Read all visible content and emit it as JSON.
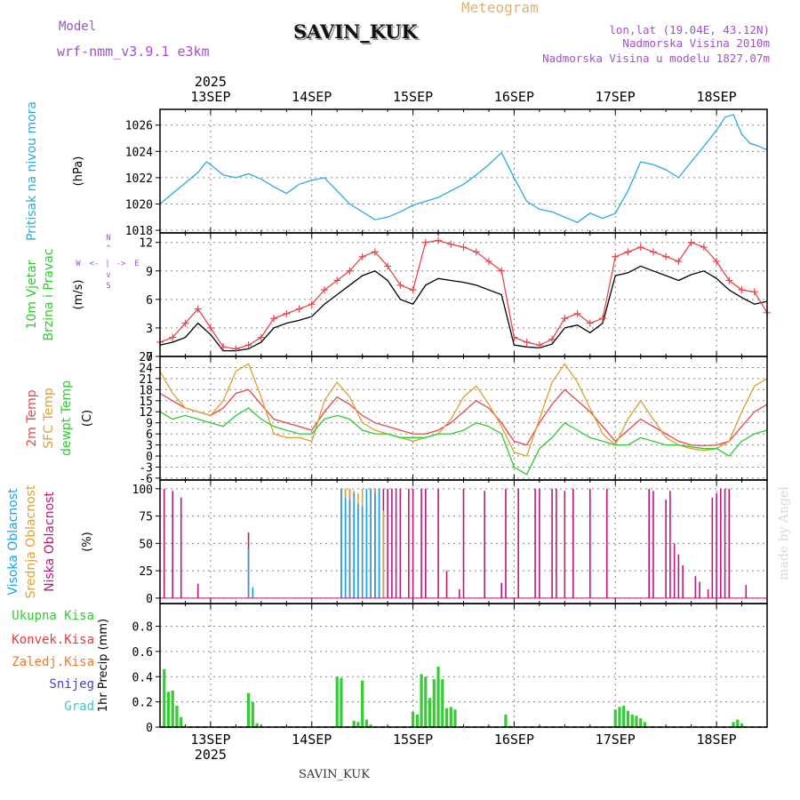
{
  "header": {
    "model_label": "Model",
    "model_value": "wrf-nmm_v3.9.1 e3km",
    "title": "Meteogram",
    "station": "SAVIN_KUK",
    "lonlat": "lon,lat (19.04E, 43.12N)",
    "elevation": "Nadmorska Visina 2010m",
    "model_elevation": "Nadmorska Visina u modelu 1827.07m",
    "footer_station": "SAVIN_KUK",
    "watermark": "made by Angel"
  },
  "colors": {
    "pressure": "#29abe2",
    "wind_speed": "#000000",
    "gust": "#e8474c",
    "temp2m": "#e8474c",
    "sfc_temp": "#e0a030",
    "dewpt": "#2ecc2e",
    "high_cloud": "#1aa3e8",
    "mid_cloud": "#e0a030",
    "low_cloud": "#c0167a",
    "precip_total": "#33cc33",
    "precip_conv": "#e83a3a",
    "precip_frz": "#f07a2a",
    "snow": "#4040e0",
    "graupel": "#33cccc",
    "model_color": "#a24fd0",
    "grid": "#888888"
  },
  "chart_data": {
    "type": "line",
    "year": "2025",
    "x_unit": "hours from 13SEP 00UTC",
    "xlim": [
      -12,
      132
    ],
    "day_ticks": [
      {
        "label": "13SEP",
        "hour": 0
      },
      {
        "label": "14SEP",
        "hour": 24
      },
      {
        "label": "15SEP",
        "hour": 48
      },
      {
        "label": "16SEP",
        "hour": 72
      },
      {
        "label": "17SEP",
        "hour": 96
      },
      {
        "label": "18SEP",
        "hour": 120
      }
    ],
    "panels": [
      {
        "id": "pressure",
        "ylabels": [
          "Pritisak na nivou mora",
          "(hPa)"
        ],
        "ylim": [
          1017.8,
          1027.2
        ],
        "yticks": [
          1018,
          1020,
          1022,
          1024,
          1026
        ],
        "series": [
          {
            "name": "Pritisak na nivou mora",
            "x": [
              -12,
              -9,
              -6,
              -3,
              -1,
              0,
              3,
              6,
              9,
              12,
              15,
              18,
              21,
              24,
              27,
              30,
              33,
              36,
              39,
              42,
              45,
              48,
              51,
              54,
              57,
              60,
              63,
              66,
              69,
              72,
              75,
              78,
              81,
              84,
              87,
              90,
              93,
              96,
              99,
              102,
              105,
              108,
              111,
              114,
              117,
              120,
              122,
              124,
              126,
              128,
              130,
              132
            ],
            "y": [
              1020.0,
              1020.8,
              1021.6,
              1022.4,
              1023.2,
              1023.0,
              1022.2,
              1022.0,
              1022.3,
              1021.9,
              1021.3,
              1020.8,
              1021.5,
              1021.8,
              1022.0,
              1021.0,
              1020.0,
              1019.4,
              1018.8,
              1019.0,
              1019.4,
              1019.9,
              1020.2,
              1020.5,
              1021.0,
              1021.5,
              1022.2,
              1023.0,
              1023.9,
              1022.0,
              1020.2,
              1019.6,
              1019.4,
              1019.0,
              1018.6,
              1019.3,
              1018.9,
              1019.3,
              1021.0,
              1023.2,
              1023.0,
              1022.6,
              1022.0,
              1023.2,
              1024.4,
              1025.6,
              1026.6,
              1026.8,
              1025.3,
              1024.6,
              1024.4,
              1024.1
            ]
          }
        ]
      },
      {
        "id": "wind",
        "ylabels": [
          "10m Vjetar",
          "Brzina i Pravac",
          "(m/s)"
        ],
        "ylim": [
          0,
          13
        ],
        "yticks": [
          0,
          3,
          6,
          9,
          12
        ],
        "compass": [
          "W",
          "<-",
          "|",
          "->",
          "E",
          "N",
          "^",
          "v",
          "S"
        ],
        "series": [
          {
            "name": "Brzina vjetra",
            "x": [
              -12,
              -9,
              -6,
              -3,
              0,
              3,
              6,
              9,
              12,
              15,
              18,
              21,
              24,
              27,
              30,
              33,
              36,
              39,
              42,
              45,
              48,
              51,
              54,
              57,
              60,
              63,
              66,
              69,
              72,
              75,
              78,
              81,
              84,
              87,
              90,
              93,
              96,
              99,
              102,
              105,
              108,
              111,
              114,
              117,
              120,
              123,
              126,
              129,
              132
            ],
            "y": [
              1.2,
              1.5,
              2.0,
              3.5,
              2.3,
              0.6,
              0.6,
              0.8,
              1.5,
              3.0,
              3.5,
              3.8,
              4.2,
              5.5,
              6.5,
              7.5,
              8.5,
              9.0,
              8.0,
              6.0,
              5.5,
              7.5,
              8.2,
              8.0,
              7.8,
              7.5,
              7.0,
              6.5,
              1.2,
              1.0,
              0.9,
              1.3,
              3.0,
              3.3,
              2.5,
              3.5,
              8.5,
              8.8,
              9.5,
              9.0,
              8.5,
              8.0,
              8.6,
              9.0,
              8.2,
              7.0,
              6.2,
              5.5,
              5.8
            ]
          },
          {
            "name": "Udar vjetra",
            "x": [
              -12,
              -9,
              -6,
              -3,
              0,
              3,
              6,
              9,
              12,
              15,
              18,
              21,
              24,
              27,
              30,
              33,
              36,
              39,
              42,
              45,
              48,
              51,
              54,
              57,
              60,
              63,
              66,
              69,
              72,
              75,
              78,
              81,
              84,
              87,
              90,
              93,
              96,
              99,
              102,
              105,
              108,
              111,
              114,
              117,
              120,
              123,
              126,
              129,
              132
            ],
            "y": [
              1.5,
              2.0,
              3.5,
              5.0,
              3.0,
              1.0,
              0.8,
              1.2,
              2.0,
              4.0,
              4.5,
              5.0,
              5.5,
              7.0,
              8.0,
              9.0,
              10.5,
              11.0,
              9.5,
              7.5,
              7.0,
              12.0,
              12.2,
              11.8,
              11.5,
              11.0,
              10.0,
              9.0,
              2.0,
              1.5,
              1.2,
              1.8,
              4.0,
              4.5,
              3.5,
              4.0,
              10.5,
              11.0,
              11.5,
              11.0,
              10.5,
              10.0,
              12.0,
              11.5,
              10.0,
              8.0,
              7.0,
              6.8,
              4.6
            ]
          }
        ]
      },
      {
        "id": "temperature",
        "ylabels": [
          "2m Temp",
          "SFC Temp",
          "dewpt Temp",
          "(C)"
        ],
        "ylim": [
          -6.5,
          27
        ],
        "yticks": [
          -6,
          -3,
          0,
          3,
          6,
          9,
          12,
          15,
          18,
          21,
          24,
          27
        ],
        "series": [
          {
            "name": "2m Temp",
            "x": [
              -12,
              -9,
              -6,
              -3,
              0,
              3,
              6,
              9,
              12,
              15,
              18,
              21,
              24,
              27,
              30,
              33,
              36,
              39,
              42,
              45,
              48,
              51,
              54,
              57,
              60,
              63,
              66,
              69,
              72,
              75,
              78,
              81,
              84,
              87,
              90,
              93,
              96,
              99,
              102,
              105,
              108,
              111,
              114,
              117,
              120,
              123,
              126,
              129,
              132
            ],
            "y": [
              17,
              15,
              13,
              12,
              11,
              13,
              17,
              18,
              14,
              10,
              9,
              8,
              7,
              12,
              16,
              14,
              11,
              9,
              8,
              7,
              6,
              6,
              7,
              9,
              12,
              15,
              13,
              9,
              4,
              3,
              9,
              14,
              18,
              15,
              12,
              8,
              4,
              7,
              10,
              8,
              6,
              4,
              3,
              2.8,
              3,
              4,
              8,
              12,
              14
            ]
          },
          {
            "name": "SFC Temp",
            "x": [
              -12,
              -9,
              -6,
              -3,
              0,
              3,
              6,
              9,
              12,
              15,
              18,
              21,
              24,
              27,
              30,
              33,
              36,
              39,
              42,
              45,
              48,
              51,
              54,
              57,
              60,
              63,
              66,
              69,
              72,
              75,
              78,
              81,
              84,
              87,
              90,
              93,
              96,
              99,
              102,
              105,
              108,
              111,
              114,
              117,
              120,
              123,
              126,
              129,
              132
            ],
            "y": [
              23,
              17,
              13,
              12,
              11,
              15,
              23,
              25,
              16,
              6,
              5,
              5,
              4,
              15,
              20,
              16,
              9,
              7,
              6,
              5,
              4,
              5,
              6,
              10,
              16,
              19,
              14,
              8,
              1,
              0,
              10,
              20,
              25,
              20,
              13,
              6,
              3,
              10,
              15,
              10,
              5,
              3,
              2,
              1.5,
              2,
              4,
              12,
              19,
              21
            ]
          },
          {
            "name": "dewpt Temp",
            "x": [
              -12,
              -9,
              -6,
              -3,
              0,
              3,
              6,
              9,
              12,
              15,
              18,
              21,
              24,
              27,
              30,
              33,
              36,
              39,
              42,
              45,
              48,
              51,
              54,
              57,
              60,
              63,
              66,
              69,
              72,
              75,
              78,
              81,
              84,
              87,
              90,
              93,
              96,
              99,
              102,
              105,
              108,
              111,
              114,
              117,
              120,
              123,
              126,
              129,
              132
            ],
            "y": [
              12,
              10,
              11,
              10,
              9,
              8,
              11,
              13,
              10,
              8,
              7,
              6,
              6,
              10,
              11,
              10,
              7,
              6,
              6,
              5,
              5,
              5,
              6,
              6,
              7,
              9,
              8,
              6,
              -3,
              -5,
              2,
              5,
              9,
              7,
              5,
              4,
              3,
              3,
              5,
              4,
              3,
              3,
              2.5,
              2,
              2,
              0,
              4,
              6,
              7
            ]
          }
        ]
      },
      {
        "id": "clouds",
        "ylabels": [
          "Visoka Oblacnost",
          "Srednja Oblacnost",
          "Niska Oblacnost",
          "(%)"
        ],
        "ylim": [
          -5,
          108
        ],
        "yticks": [
          0,
          25,
          50,
          75,
          100
        ],
        "series": [
          {
            "name": "Niska Oblacnost",
            "x": [
              -11,
              -9,
              -7,
              -3,
              9,
              10,
              31,
              32,
              33,
              38,
              39,
              40,
              41,
              42,
              43,
              44,
              45,
              47,
              48,
              50,
              51,
              54,
              56,
              59,
              60,
              65,
              69,
              70,
              73,
              77,
              78,
              81,
              82,
              84,
              86,
              90,
              94,
              104,
              105,
              108,
              109,
              110,
              111,
              112,
              115,
              116,
              118,
              119,
              120,
              121,
              122,
              123,
              127
            ],
            "y": [
              100,
              98,
              92,
              13,
              60,
              8,
              100,
              100,
              100,
              100,
              100,
              100,
              100,
              100,
              100,
              100,
              100,
              100,
              100,
              100,
              100,
              100,
              25,
              8,
              100,
              98,
              14,
              100,
              100,
              100,
              100,
              100,
              100,
              98,
              100,
              100,
              100,
              100,
              98,
              90,
              98,
              50,
              40,
              30,
              20,
              15,
              8,
              92,
              96,
              100,
              100,
              100,
              12
            ]
          },
          {
            "name": "Srednja Oblacnost",
            "x": [
              31,
              32,
              33,
              34,
              35,
              36,
              37,
              38,
              39,
              40,
              41
            ],
            "y": [
              100,
              100,
              100,
              98,
              96,
              100,
              84,
              80,
              100,
              100,
              80
            ]
          },
          {
            "name": "Visoka Oblacnost",
            "x": [
              9,
              10,
              31,
              32,
              33,
              34,
              35,
              36,
              37,
              38,
              39,
              40
            ],
            "y": [
              45,
              10,
              100,
              92,
              90,
              96,
              86,
              84,
              100,
              100,
              96,
              100
            ]
          }
        ]
      },
      {
        "id": "precip",
        "ylabels": [
          "1hr Precip (mm)"
        ],
        "legend": [
          "Ukupna Kisa",
          "Konvek.Kisa",
          "Zaledj.Kisa",
          "Snijeg",
          "Grad"
        ],
        "ylim": [
          0,
          0.98
        ],
        "yticks": [
          0,
          0.2,
          0.4,
          0.6,
          0.8
        ],
        "series": [
          {
            "name": "Ukupna Kisa",
            "x": [
              -11,
              -10,
              -9,
              -8,
              -7,
              9,
              10,
              11,
              30,
              31,
              34,
              35,
              36,
              37,
              38,
              48,
              49,
              50,
              51,
              52,
              53,
              54,
              55,
              56,
              57,
              58,
              70,
              71,
              96,
              97,
              98,
              99,
              100,
              101,
              102,
              103,
              124,
              125,
              126
            ],
            "y": [
              0.46,
              0.28,
              0.29,
              0.17,
              0.08,
              0.27,
              0.2,
              0.03,
              0.4,
              0.39,
              0.05,
              0.04,
              0.37,
              0.06,
              0.02,
              0.12,
              0.1,
              0.42,
              0.4,
              0.23,
              0.38,
              0.48,
              0.38,
              0.15,
              0.16,
              0.14,
              0.1,
              0.01,
              0.14,
              0.16,
              0.17,
              0.13,
              0.1,
              0.09,
              0.07,
              0.04,
              0.04,
              0.06,
              0.03
            ]
          }
        ]
      }
    ]
  }
}
